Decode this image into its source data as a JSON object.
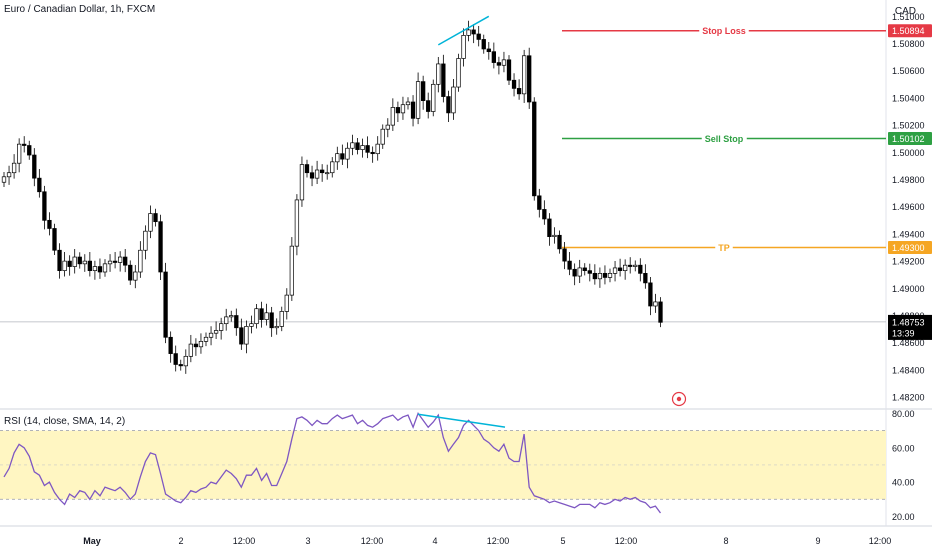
{
  "header": {
    "title": "Euro / Canadian Dollar, 1h, FXCM",
    "currency": "CAD"
  },
  "rsi_panel": {
    "title": "RSI (14, close, SMA, 14, 2)"
  },
  "colors": {
    "up_candle": "#ffffff",
    "down_candle": "#000000",
    "candle_outline": "#000000",
    "stop_loss": "#e53945",
    "sell_stop": "#2ea043",
    "tp": "#f5a623",
    "divergence": "#00b4d8",
    "rsi_line": "#7e57c2",
    "rsi_band": "#fff6c2",
    "last_price_bg": "#000000"
  },
  "chart_data": [
    {
      "type": "candlestick",
      "title": "Euro / Canadian Dollar, 1h, FXCM",
      "ylim": [
        1.4812,
        1.5112
      ],
      "y_ticks": [
        "1.51000",
        "1.50800",
        "1.50600",
        "1.50400",
        "1.50200",
        "1.50000",
        "1.49800",
        "1.49600",
        "1.49400",
        "1.49200",
        "1.49000",
        "1.48800",
        "1.48600",
        "1.48400",
        "1.48200"
      ],
      "x_ticks": [
        "May",
        "2",
        "12:00",
        "3",
        "12:00",
        "4",
        "12:00",
        "5",
        "12:00",
        "8",
        "9",
        "12:00"
      ],
      "closes": [
        1.4982,
        1.4985,
        1.4992,
        1.5006,
        1.5005,
        1.4998,
        1.4981,
        1.4971,
        1.495,
        1.4944,
        1.4928,
        1.4913,
        1.492,
        1.4916,
        1.4923,
        1.4918,
        1.492,
        1.4913,
        1.4916,
        1.4912,
        1.4918,
        1.492,
        1.4919,
        1.4923,
        1.4917,
        1.4906,
        1.4912,
        1.4928,
        1.4942,
        1.4955,
        1.4949,
        1.4912,
        1.4864,
        1.4852,
        1.4844,
        1.4843,
        1.485,
        1.4859,
        1.4857,
        1.4861,
        1.4864,
        1.4867,
        1.4869,
        1.4874,
        1.4879,
        1.488,
        1.4871,
        1.4859,
        1.4872,
        1.4874,
        1.4885,
        1.4877,
        1.4882,
        1.4871,
        1.4872,
        1.4883,
        1.4895,
        1.4931,
        1.4965,
        1.4991,
        1.4985,
        1.4981,
        1.4987,
        1.4985,
        1.4985,
        1.4993,
        1.4999,
        1.4995,
        1.5003,
        1.5007,
        1.5002,
        1.5005,
        1.5,
        1.4999,
        1.5006,
        1.5017,
        1.502,
        1.5033,
        1.5029,
        1.5035,
        1.5037,
        1.5025,
        1.5052,
        1.5038,
        1.503,
        1.505,
        1.5065,
        1.5041,
        1.5029,
        1.5048,
        1.5069,
        1.5086,
        1.509,
        1.5087,
        1.5083,
        1.5076,
        1.5074,
        1.5066,
        1.5064,
        1.5068,
        1.5053,
        1.5047,
        1.5043,
        1.5071,
        1.5037,
        1.4968,
        1.4958,
        1.4951,
        1.4938,
        1.4939,
        1.4929,
        1.492,
        1.4914,
        1.4909,
        1.4915,
        1.4913,
        1.4911,
        1.4907,
        1.4911,
        1.4908,
        1.4911,
        1.4915,
        1.4913,
        1.4917,
        1.4916,
        1.4917,
        1.4911,
        1.4904,
        1.4887,
        1.489,
        1.4875
      ],
      "last_price": "1.48753",
      "countdown": "13:39",
      "levels": [
        {
          "label": "Stop Loss",
          "price": "1.50894"
        },
        {
          "label": "Sell Stop",
          "price": "1.50102"
        },
        {
          "label": "TP",
          "price": "1.49300"
        }
      ]
    },
    {
      "type": "line",
      "title": "RSI (14, close, SMA, 14, 2)",
      "ylim": [
        15,
        82
      ],
      "y_ticks": [
        "80.00",
        "60.00",
        "40.00",
        "20.00"
      ],
      "band": [
        30,
        70
      ],
      "midline": 50,
      "values": [
        43,
        48,
        57,
        62,
        60,
        55,
        46,
        44,
        38,
        40,
        34,
        30,
        27,
        33,
        31,
        35,
        34,
        30,
        35,
        32,
        37,
        36,
        35,
        37,
        34,
        30,
        33,
        43,
        52,
        57,
        56,
        45,
        33,
        31,
        29,
        28,
        31,
        35,
        34,
        36,
        37,
        40,
        39,
        43,
        47,
        45,
        42,
        37,
        44,
        44,
        48,
        41,
        45,
        38,
        38,
        45,
        52,
        65,
        77,
        78,
        76,
        73,
        76,
        74,
        74,
        77,
        79,
        77,
        78,
        79,
        74,
        76,
        73,
        72,
        74,
        77,
        78,
        79,
        76,
        78,
        79,
        72,
        80,
        76,
        72,
        75,
        79,
        66,
        58,
        62,
        66,
        73,
        76,
        73,
        70,
        65,
        63,
        60,
        58,
        62,
        54,
        52,
        52,
        68,
        37,
        32,
        31,
        30,
        28,
        29,
        28,
        27,
        26,
        25,
        27,
        27,
        27,
        25,
        28,
        27,
        28,
        30,
        29,
        31,
        30,
        31,
        29,
        28,
        25,
        26,
        22
      ],
      "divergence": "down"
    }
  ]
}
